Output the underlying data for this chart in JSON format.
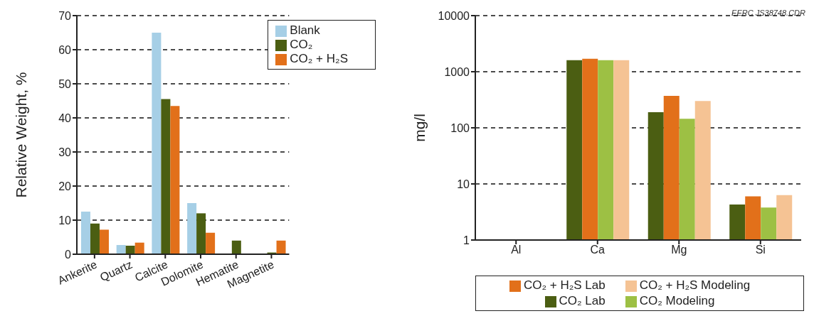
{
  "chart_data": [
    {
      "type": "bar",
      "ylabel": "Relative Weight, %",
      "categories": [
        "Ankerite",
        "Quartz",
        "Calcite",
        "Dolomite",
        "Hematite",
        "Magnetite"
      ],
      "series": [
        {
          "name": "Blank",
          "color": "#a6cfe6",
          "values": [
            12.5,
            2.7,
            65,
            15,
            null,
            null
          ]
        },
        {
          "name": "CO₂",
          "color": "#4b5e12",
          "values": [
            9,
            2.5,
            45.5,
            12,
            4,
            0.5
          ]
        },
        {
          "name": "CO₂ + H₂S",
          "color": "#e2701a",
          "values": [
            7.2,
            3.4,
            43.5,
            6.3,
            null,
            4
          ]
        }
      ],
      "ylim": [
        0,
        70
      ],
      "yticks": [
        0,
        10,
        20,
        30,
        40,
        50,
        60,
        70
      ],
      "grid": "y",
      "legend": "top right"
    },
    {
      "type": "bar",
      "ylabel": "mg/l",
      "categories": [
        "Al",
        "Ca",
        "Mg",
        "Si"
      ],
      "series": [
        {
          "name": "CO₂ Lab",
          "color": "#4b5e12",
          "values": [
            null,
            1600,
            190,
            4.3
          ]
        },
        {
          "name": "CO₂ + H₂S Lab",
          "color": "#e2701a",
          "values": [
            null,
            1700,
            370,
            6
          ]
        },
        {
          "name": "CO₂ Modeling",
          "color": "#9dc044",
          "values": [
            null,
            1600,
            145,
            3.8
          ]
        },
        {
          "name": "CO₂ + H₂S Modeling",
          "color": "#f5c394",
          "values": [
            null,
            1600,
            300,
            6.3
          ]
        }
      ],
      "ylim": [
        1,
        10000
      ],
      "yticks": [
        1,
        10,
        100,
        1000,
        10000
      ],
      "log": true,
      "grid": "y",
      "legend": "bottom",
      "annotations": [
        "EERC JS38748.CDR"
      ]
    }
  ]
}
